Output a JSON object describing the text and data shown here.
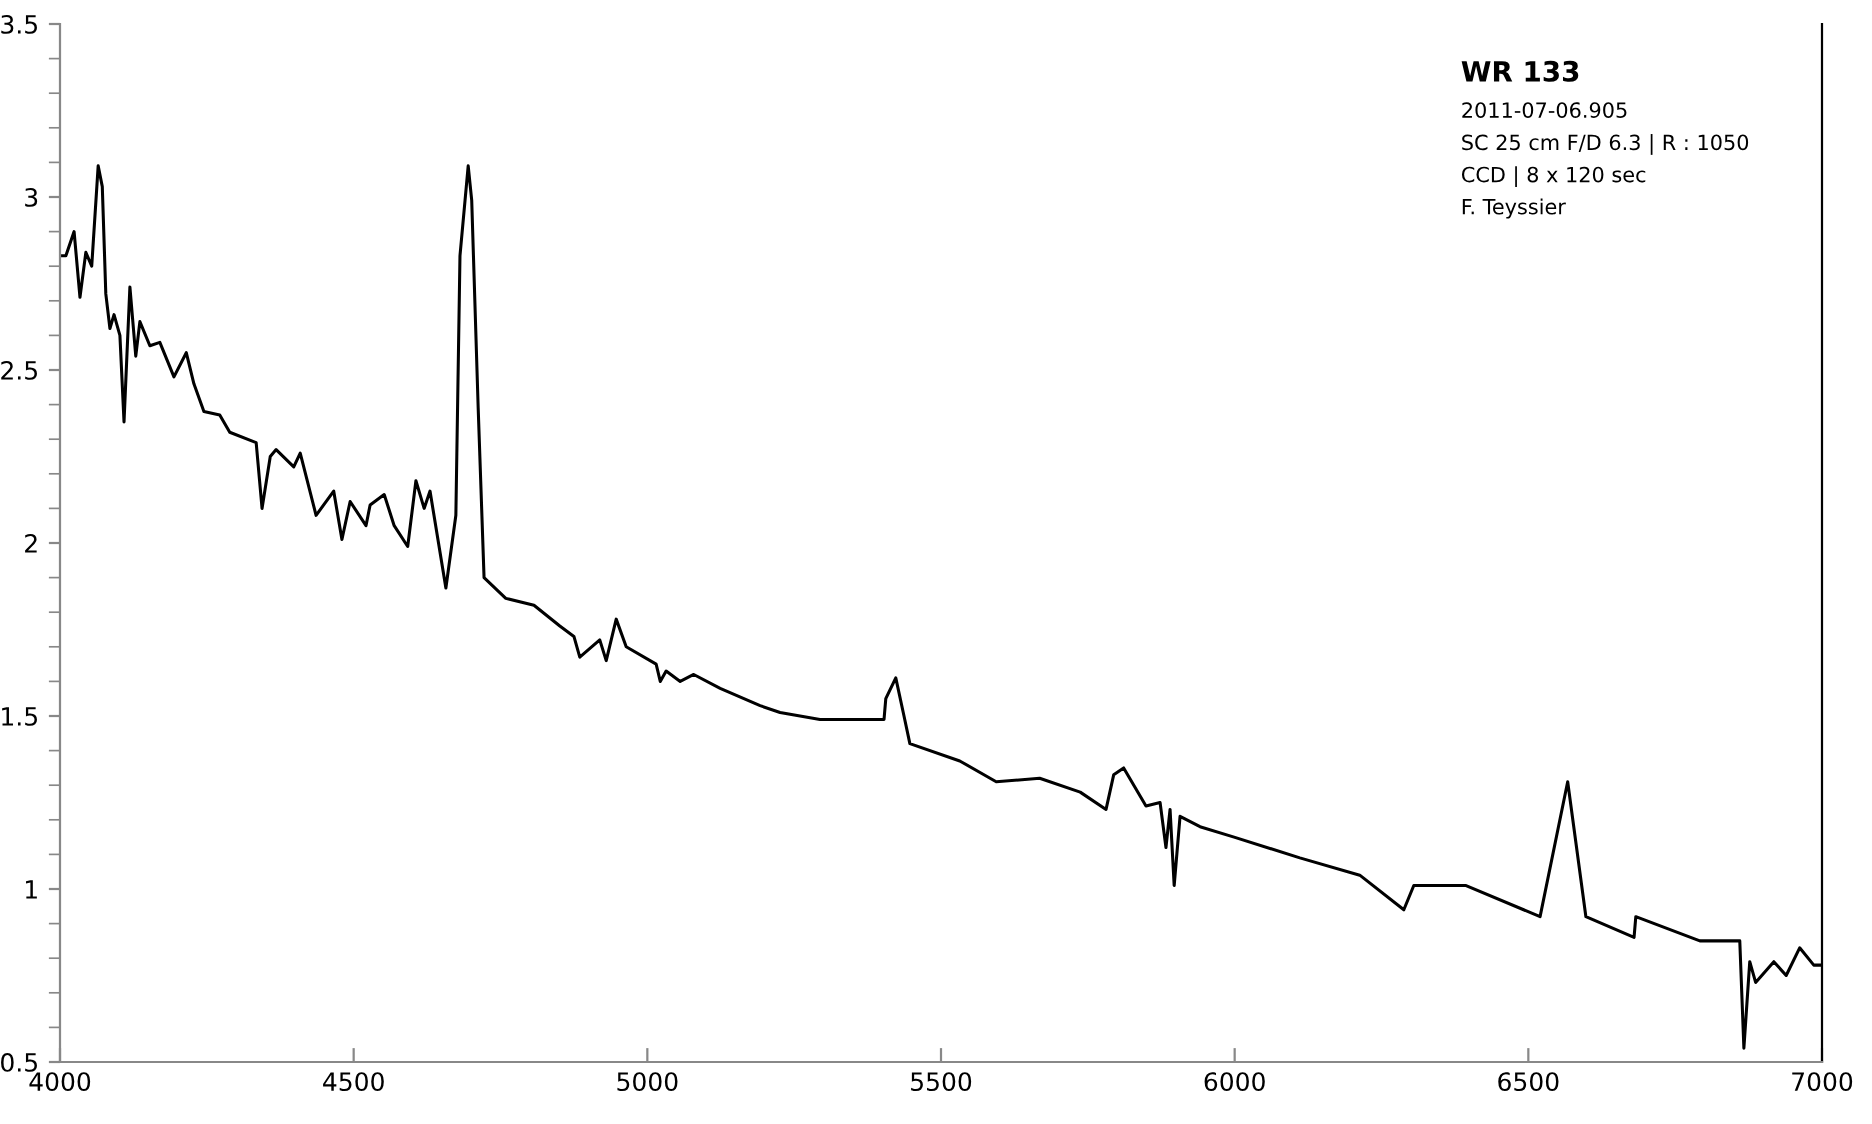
{
  "chart_data": {
    "type": "line",
    "title": "WR 133",
    "annotations": [
      "2011-07-06.905",
      "SC 25 cm F/D 6.3 | R : 1050",
      "CCD | 8 x 120 sec",
      "F. Teyssier"
    ],
    "x": [
      4000,
      4010,
      4024,
      4034,
      4044,
      4054,
      4065,
      4072,
      4078,
      4085,
      4092,
      4102,
      4109,
      4119,
      4129,
      4136,
      4153,
      4170,
      4194,
      4215,
      4228,
      4245,
      4272,
      4289,
      4334,
      4344,
      4358,
      4368,
      4398,
      4409,
      4436,
      4466,
      4480,
      4494,
      4521,
      4528,
      4552,
      4569,
      4592,
      4606,
      4620,
      4630,
      4657,
      4674,
      4681,
      4695,
      4701,
      4712,
      4722,
      4759,
      4807,
      4851,
      4875,
      4885,
      4919,
      4930,
      4947,
      4964,
      5015,
      5022,
      5032,
      5056,
      5079,
      5124,
      5192,
      5226,
      5294,
      5403,
      5406,
      5423,
      5437,
      5447,
      5532,
      5594,
      5668,
      5737,
      5781,
      5794,
      5811,
      5849,
      5873,
      5883,
      5890,
      5897,
      5907,
      5941,
      5999,
      6111,
      6213,
      6288,
      6305,
      6394,
      6520,
      6567,
      6598,
      6680,
      6683,
      6792,
      6860,
      6867,
      6877,
      6887,
      6918,
      6939,
      6962,
      6986,
      7000
    ],
    "series": [
      {
        "color": "#000000",
        "values": [
          2.83,
          2.83,
          2.9,
          2.71,
          2.84,
          2.8,
          3.09,
          3.03,
          2.72,
          2.62,
          2.66,
          2.6,
          2.35,
          2.74,
          2.54,
          2.64,
          2.57,
          2.58,
          2.48,
          2.55,
          2.46,
          2.38,
          2.37,
          2.32,
          2.29,
          2.1,
          2.25,
          2.27,
          2.22,
          2.26,
          2.08,
          2.15,
          2.01,
          2.12,
          2.05,
          2.11,
          2.14,
          2.05,
          1.99,
          2.18,
          2.1,
          2.15,
          1.87,
          2.08,
          2.83,
          3.09,
          2.99,
          2.39,
          1.9,
          1.84,
          1.82,
          1.76,
          1.73,
          1.67,
          1.72,
          1.66,
          1.78,
          1.7,
          1.65,
          1.6,
          1.63,
          1.6,
          1.62,
          1.58,
          1.53,
          1.51,
          1.49,
          1.49,
          1.55,
          1.61,
          1.5,
          1.42,
          1.37,
          1.31,
          1.32,
          1.28,
          1.23,
          1.33,
          1.35,
          1.24,
          1.25,
          1.12,
          1.23,
          1.01,
          1.21,
          1.18,
          1.15,
          1.09,
          1.04,
          0.94,
          1.01,
          1.01,
          0.92,
          1.31,
          0.92,
          0.86,
          0.92,
          0.85,
          0.85,
          0.54,
          0.79,
          0.73,
          0.79,
          0.75,
          0.83,
          0.78,
          0.78
        ]
      }
    ],
    "xlim": [
      4000,
      7000
    ],
    "xticks": [
      4000,
      4500,
      5000,
      5500,
      6000,
      6500,
      7000
    ],
    "ylim": [
      0.5,
      3.5
    ],
    "yticks": [
      0.5,
      {
        "value": 0.6,
        "label": null
      },
      {
        "value": 0.7,
        "label": null
      },
      {
        "value": 0.8,
        "label": null
      },
      {
        "value": 0.9,
        "label": null
      },
      1,
      {
        "value": 1.1,
        "label": null
      },
      {
        "value": 1.2,
        "label": null
      },
      {
        "value": 1.3,
        "label": null
      },
      {
        "value": 1.4,
        "label": null
      },
      1.5,
      {
        "value": 1.6,
        "label": null
      },
      {
        "value": 1.7,
        "label": null
      },
      {
        "value": 1.8,
        "label": null
      },
      {
        "value": 1.9,
        "label": null
      },
      2,
      {
        "value": 2.1,
        "label": null
      },
      {
        "value": 2.2,
        "label": null
      },
      {
        "value": 2.3,
        "label": null
      },
      {
        "value": 2.4,
        "label": null
      },
      2.5,
      {
        "value": 2.6,
        "label": null
      },
      {
        "value": 2.7,
        "label": null
      },
      {
        "value": 2.8,
        "label": null
      },
      {
        "value": 2.9,
        "label": null
      },
      3,
      {
        "value": 3.1,
        "label": null
      },
      {
        "value": 3.2,
        "label": null
      },
      {
        "value": 3.3,
        "label": null
      },
      {
        "value": 3.4,
        "label": null
      },
      3.5
    ],
    "grid": false,
    "legend": false,
    "marker": "none",
    "line_style": "solid"
  }
}
